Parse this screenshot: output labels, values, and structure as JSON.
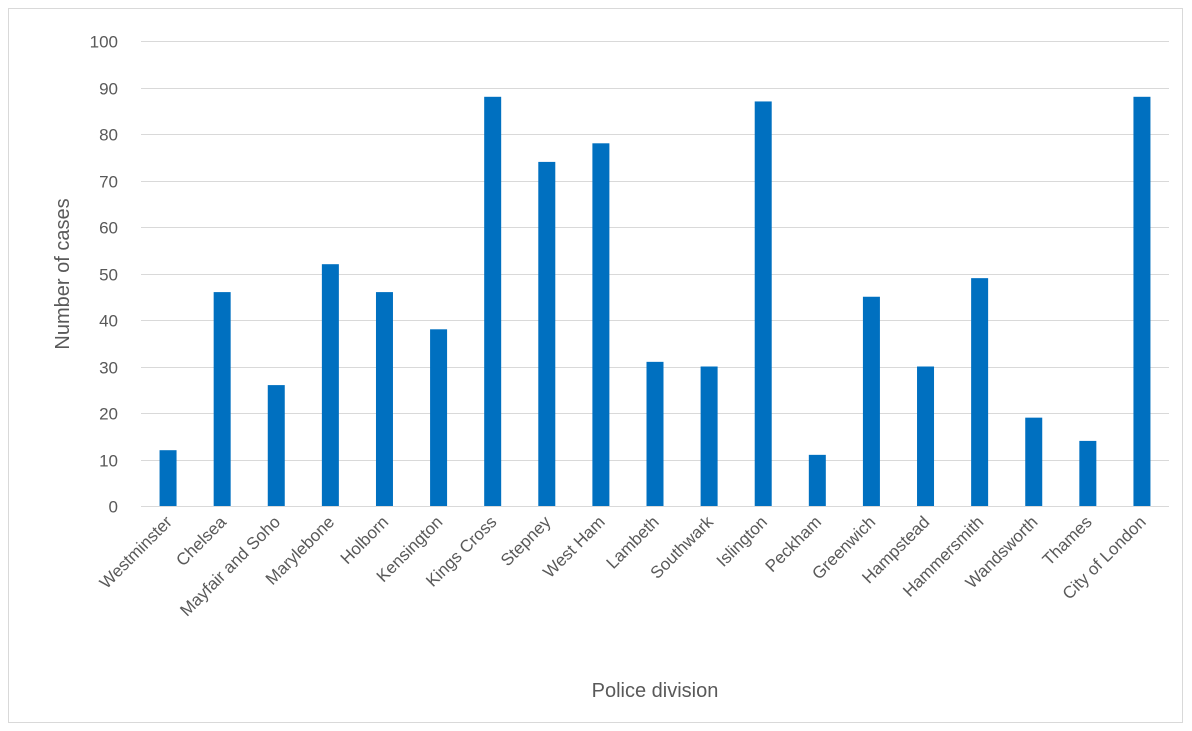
{
  "chart_data": {
    "type": "bar",
    "title": "",
    "xlabel": "Police division",
    "ylabel": "Number of cases",
    "ylim": [
      0,
      100
    ],
    "yticks": [
      0,
      10,
      20,
      30,
      40,
      50,
      60,
      70,
      80,
      90,
      100
    ],
    "grid": true,
    "legend": "none",
    "bar_color": "#0070C0",
    "categories": [
      "Westminster",
      "Chelsea",
      "Mayfair and Soho",
      "Marylebone",
      "Holborn",
      "Kensington",
      "Kings Cross",
      "Stepney",
      "West Ham",
      "Lambeth",
      "Southwark",
      "Islington",
      "Peckham",
      "Greenwich",
      "Hampstead",
      "Hammersmith",
      "Wandsworth",
      "Thames",
      "City of London"
    ],
    "values": [
      12,
      46,
      26,
      52,
      46,
      38,
      88,
      74,
      78,
      31,
      30,
      87,
      11,
      45,
      30,
      49,
      19,
      14,
      88
    ]
  }
}
